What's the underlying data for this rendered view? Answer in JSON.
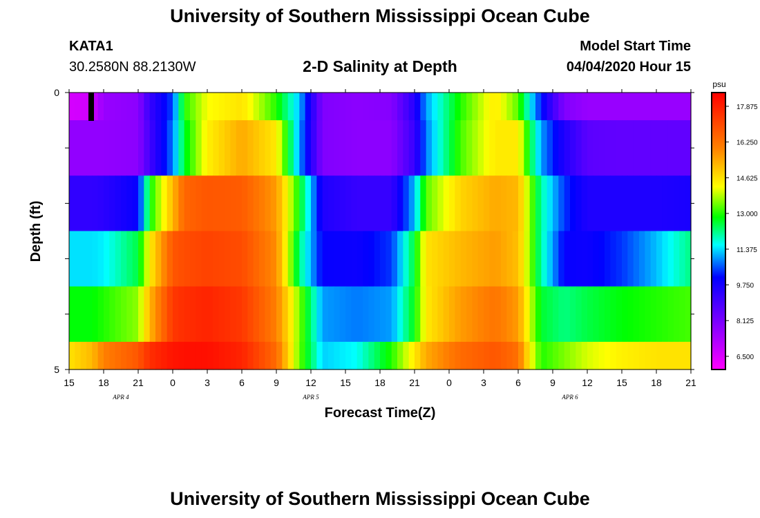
{
  "header": {
    "title": "University of Southern Mississippi Ocean Cube",
    "station_id": "KATA1",
    "station_coords": "30.2580N 88.2130W",
    "chart_title": "2-D Salinity at Depth",
    "model_start_label": "Model Start Time",
    "model_start_value": "04/04/2020 Hour 15"
  },
  "footer": {
    "title": "University of Southern Mississippi Ocean Cube"
  },
  "chart_data": {
    "type": "heatmap",
    "title": "2-D Salinity at Depth",
    "xlabel": "Forecast Time(Z)",
    "ylabel": "Depth (ft)",
    "x_tick_labels": [
      "15",
      "18",
      "21",
      "0",
      "3",
      "6",
      "9",
      "12",
      "15",
      "18",
      "21",
      "0",
      "3",
      "6",
      "9",
      "12",
      "15",
      "18",
      "21"
    ],
    "x_date_labels": [
      {
        "label": "APR 4",
        "hour_index": 4.5
      },
      {
        "label": "APR 5",
        "hour_index": 21
      },
      {
        "label": "APR 6",
        "hour_index": 43.5
      }
    ],
    "x_range_hours": [
      0,
      54
    ],
    "y_tick_labels": [
      {
        "value": 0,
        "label": "0"
      },
      {
        "value": 5,
        "label": "5"
      }
    ],
    "y_range": [
      0,
      5
    ],
    "colorbar": {
      "unit": "psu",
      "min": 5.9,
      "max": 18.5,
      "tick_values": [
        6.5,
        8.125,
        9.75,
        11.375,
        13.0,
        14.625,
        16.25,
        17.875
      ],
      "tick_labels": [
        "6.500",
        "8.125",
        "9.750",
        "11.375",
        "13.000",
        "14.625",
        "16.250",
        "17.875"
      ]
    },
    "depth_layers": [
      0.5,
      1.5,
      2.5,
      3.5,
      4.5,
      5.0
    ],
    "time_keyframes": {
      "hours": [
        0,
        2,
        3,
        6,
        7,
        9,
        10,
        12,
        15,
        18,
        20,
        22,
        25,
        28,
        30,
        31,
        34,
        37,
        39,
        40,
        41,
        43,
        45,
        48,
        51,
        54
      ],
      "values": [
        [
          6.6,
          6.7,
          7.6,
          7.8,
          9.2,
          10.5,
          13.0,
          14.2,
          14.6,
          13.0,
          11.2,
          8.0,
          7.8,
          7.9,
          9.5,
          11.0,
          13.0,
          14.5,
          13.3,
          11.6,
          10.2,
          8.0,
          7.6,
          7.6,
          7.6,
          7.6
        ],
        [
          7.7,
          7.7,
          7.7,
          7.8,
          9.0,
          10.8,
          12.6,
          14.4,
          15.4,
          14.5,
          11.0,
          8.0,
          7.8,
          7.8,
          9.2,
          10.8,
          13.2,
          14.5,
          14.5,
          12.6,
          11.0,
          9.6,
          8.6,
          8.5,
          8.5,
          8.5
        ],
        [
          9.3,
          9.3,
          9.4,
          10.0,
          12.8,
          15.2,
          16.5,
          16.8,
          16.7,
          15.6,
          12.8,
          9.6,
          9.2,
          9.2,
          11.2,
          13.3,
          14.8,
          15.4,
          15.2,
          13.6,
          12.0,
          10.4,
          9.6,
          9.6,
          9.6,
          9.7
        ],
        [
          11.4,
          11.4,
          11.5,
          12.5,
          14.4,
          16.8,
          17.0,
          17.2,
          17.0,
          15.8,
          12.2,
          10.0,
          9.9,
          10.4,
          12.6,
          14.6,
          15.2,
          15.6,
          15.1,
          13.6,
          12.0,
          10.0,
          9.9,
          10.4,
          11.2,
          12.2
        ],
        [
          12.8,
          12.8,
          13.0,
          13.6,
          15.2,
          17.4,
          17.6,
          17.8,
          17.4,
          16.0,
          13.5,
          11.0,
          10.8,
          11.0,
          12.8,
          14.5,
          15.6,
          16.2,
          15.6,
          14.0,
          12.6,
          12.2,
          12.5,
          12.8,
          13.0,
          13.2
        ],
        [
          14.6,
          15.2,
          16.0,
          16.8,
          17.6,
          18.1,
          18.2,
          18.2,
          17.8,
          16.4,
          13.4,
          11.3,
          11.6,
          13.0,
          14.5,
          15.4,
          16.4,
          16.8,
          16.3,
          14.4,
          13.0,
          13.5,
          14.0,
          14.4,
          14.6,
          14.6
        ]
      ]
    }
  }
}
